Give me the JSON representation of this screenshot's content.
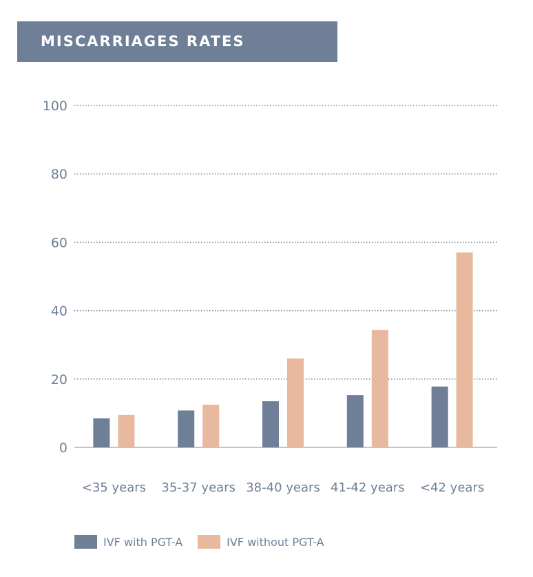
{
  "colors": {
    "series_with": "#6e7f97",
    "series_without": "#e8b99e",
    "axis_text": "#6e7f97",
    "baseline": "#e8b99e",
    "grid": "#6e7f97",
    "banner": "#6e7f97"
  },
  "chart_data": {
    "type": "bar",
    "title": "MISCARRIAGES RATES",
    "categories": [
      "<35 years",
      "35-37 years",
      "38-40 years",
      "41-42 years",
      "<42 years"
    ],
    "series": [
      {
        "name": "IVF with PGT-A",
        "values": [
          8.5,
          10.8,
          13.5,
          15.3,
          17.8
        ]
      },
      {
        "name": "IVF without PGT-A",
        "values": [
          9.5,
          12.5,
          26,
          34.3,
          57
        ]
      }
    ],
    "yticks": [
      0,
      20,
      40,
      60,
      80,
      100
    ],
    "ylim": [
      0,
      100
    ],
    "grid": "dotted horizontal",
    "legend": "bottom-left"
  }
}
